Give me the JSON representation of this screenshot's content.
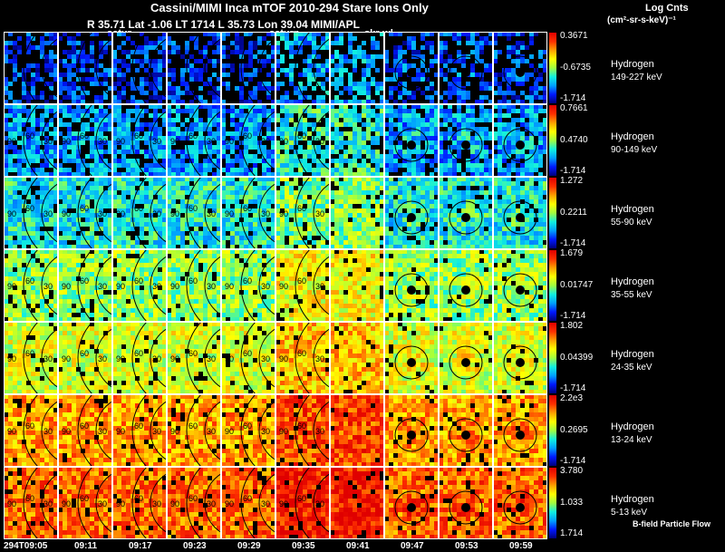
{
  "header": {
    "title": "Cassini/MIMI Inca mTOF  2010-294   Stare   Ions Only",
    "subtitle": "R       35.71 Lat -1.06 LT 1714 L        35.73 Lon        39.04  MIMI/APL",
    "units_title": "Log Cnts",
    "units_sub": "(cm²-sr-s-keV)⁻¹"
  },
  "top_labels": [
    "satur",
    "saturn",
    "skr-wl"
  ],
  "time_labels": [
    "294T09:05",
    "09:11",
    "09:17",
    "09:23",
    "09:29",
    "09:35",
    "09:41",
    "09:47",
    "09:53",
    "09:59"
  ],
  "footer": {
    "flow_note": "B-field Particle Flow"
  },
  "chart_data": {
    "type": "heatmap",
    "title": "Cassini/MIMI Inca mTOF  2010-294   Stare   Ions Only",
    "x": [
      "294T09:05",
      "09:11",
      "09:17",
      "09:23",
      "09:29",
      "09:35",
      "09:41",
      "09:47",
      "09:53",
      "09:59"
    ],
    "colorbar_label": "Log Cnts (cm²-sr-s-keV)⁻¹",
    "contour_labels": [
      "90",
      "60",
      "30"
    ],
    "rows": [
      {
        "species": "Hydrogen",
        "energy": "149-227 keV",
        "cb_max": "0.3671",
        "cb_mid": "-0.6735",
        "cb_min": "-1.714",
        "level": 0.15,
        "density": 0.55
      },
      {
        "species": "Hydrogen",
        "energy": "90-149 keV",
        "cb_max": "0.7661",
        "cb_mid": "0.4740",
        "cb_min": "-1.714",
        "level": 0.26,
        "density": 0.8
      },
      {
        "species": "Hydrogen",
        "energy": "55-90 keV",
        "cb_max": "1.272",
        "cb_mid": "0.2211",
        "cb_min": "-1.714",
        "level": 0.36,
        "density": 0.9
      },
      {
        "species": "Hydrogen",
        "energy": "35-55 keV",
        "cb_max": "1.679",
        "cb_mid": "0.01747",
        "cb_min": "-1.714",
        "level": 0.5,
        "density": 0.93
      },
      {
        "species": "Hydrogen",
        "energy": "24-35 keV",
        "cb_max": "1.802",
        "cb_mid": "0.04399",
        "cb_min": "-1.714",
        "level": 0.58,
        "density": 0.93
      },
      {
        "species": "Hydrogen",
        "energy": "13-24 keV",
        "cb_max": "2.2e3",
        "cb_mid": "0.2695",
        "cb_min": "-1.714",
        "level": 0.74,
        "density": 0.93
      },
      {
        "species": "Hydrogen",
        "energy": "5-13 keV",
        "cb_max": "3.780",
        "cb_mid": "1.033",
        "cb_min": "1.714",
        "level": 0.82,
        "density": 0.93
      }
    ],
    "colormap": [
      "#00007a",
      "#0018ff",
      "#00a0ff",
      "#10f0e0",
      "#a0ff40",
      "#ffff00",
      "#ffa000",
      "#ff3000",
      "#e00000"
    ]
  }
}
